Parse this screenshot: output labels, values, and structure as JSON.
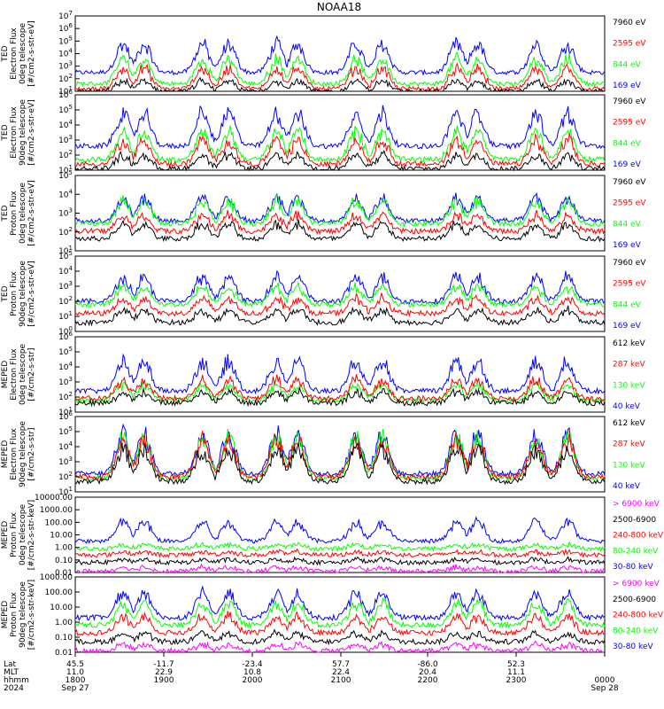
{
  "title": "NOAA18",
  "colors": {
    "blue": "#0000ff",
    "red": "#ff0000",
    "green": "#00ff00",
    "black": "#000000",
    "magenta": "#ff00ff",
    "axis": "#000000"
  },
  "chart_data": [
    {
      "type": "line",
      "id": "ted_e_0",
      "ylabel_lines": [
        "TED",
        "Electron Flux",
        "0deg telescope",
        "[#/cm2-s-str-eV]"
      ],
      "y_scale": "log",
      "yticks": [
        "10^7",
        "10^6",
        "10^5",
        "10^4",
        "10^3",
        "10^2",
        "10^1"
      ],
      "ylim_exp": [
        1,
        7
      ],
      "legend": [
        {
          "label": "7960 eV",
          "color": "black"
        },
        {
          "label": "2595 eV",
          "color": "red"
        },
        {
          "label": "844 eV",
          "color": "green"
        },
        {
          "label": "169 eV",
          "color": "blue"
        }
      ],
      "series": [
        {
          "name": "169 eV",
          "color": "blue",
          "base": 2.5,
          "peak": 5.3
        },
        {
          "name": "844 eV",
          "color": "green",
          "base": 1.6,
          "peak": 4.0
        },
        {
          "name": "2595 eV",
          "color": "red",
          "base": 1.2,
          "peak": 3.2
        },
        {
          "name": "7960 eV",
          "color": "black",
          "base": 1.0,
          "peak": 2.0
        }
      ]
    },
    {
      "type": "line",
      "id": "ted_e_90",
      "ylabel_lines": [
        "TED",
        "Electron Flux",
        "90deg telescope",
        "[#/cm2-s-str-eV]"
      ],
      "y_scale": "log",
      "yticks": [
        "10^6",
        "10^5",
        "10^4",
        "10^3",
        "10^2",
        "10^1"
      ],
      "ylim_exp": [
        1,
        6
      ],
      "legend": [
        {
          "label": "7960 eV",
          "color": "black"
        },
        {
          "label": "2595 eV",
          "color": "red"
        },
        {
          "label": "844 eV",
          "color": "green"
        },
        {
          "label": "169 eV",
          "color": "blue"
        }
      ],
      "series": [
        {
          "name": "169 eV",
          "color": "blue",
          "base": 2.6,
          "peak": 5.3
        },
        {
          "name": "844 eV",
          "color": "green",
          "base": 1.7,
          "peak": 4.0
        },
        {
          "name": "2595 eV",
          "color": "red",
          "base": 1.4,
          "peak": 3.3
        },
        {
          "name": "7960 eV",
          "color": "black",
          "base": 1.1,
          "peak": 2.2
        }
      ]
    },
    {
      "type": "line",
      "id": "ted_p_0",
      "ylabel_lines": [
        "TED",
        "Proton Flux",
        "0deg telescope",
        "[#/cm2-s-str-eV]"
      ],
      "y_scale": "log",
      "yticks": [
        "10^5",
        "10^4",
        "10^3",
        "10^2",
        "10^1"
      ],
      "ylim_exp": [
        0,
        5
      ],
      "legend": [
        {
          "label": "7960 eV",
          "color": "black"
        },
        {
          "label": "2595 eV",
          "color": "red"
        },
        {
          "label": "844 eV",
          "color": "green"
        },
        {
          "label": "169 eV",
          "color": "blue"
        }
      ],
      "series": [
        {
          "name": "169 eV",
          "color": "blue",
          "base": 2.0,
          "peak": 3.8
        },
        {
          "name": "844 eV",
          "color": "green",
          "base": 1.8,
          "peak": 3.6
        },
        {
          "name": "2595 eV",
          "color": "red",
          "base": 1.3,
          "peak": 2.6
        },
        {
          "name": "7960 eV",
          "color": "black",
          "base": 0.8,
          "peak": 2.0
        }
      ]
    },
    {
      "type": "line",
      "id": "ted_p_90",
      "ylabel_lines": [
        "TED",
        "Proton Flux",
        "90deg telescope",
        "[#/cm2-s-str-eV]"
      ],
      "y_scale": "log",
      "yticks": [
        "10^5",
        "10^4",
        "10^3",
        "10^2",
        "10^1",
        "10^0"
      ],
      "ylim_exp": [
        0,
        5
      ],
      "legend": [
        {
          "label": "7960 eV",
          "color": "black"
        },
        {
          "label": "2595 eV",
          "color": "red"
        },
        {
          "label": "844 eV",
          "color": "green"
        },
        {
          "label": "169 eV",
          "color": "blue"
        }
      ],
      "series": [
        {
          "name": "169 eV",
          "color": "blue",
          "base": 2.0,
          "peak": 4.0
        },
        {
          "name": "844 eV",
          "color": "green",
          "base": 1.8,
          "peak": 3.2
        },
        {
          "name": "2595 eV",
          "color": "red",
          "base": 1.2,
          "peak": 2.4
        },
        {
          "name": "7960 eV",
          "color": "black",
          "base": 0.6,
          "peak": 1.6
        }
      ]
    },
    {
      "type": "line",
      "id": "meped_e_0",
      "ylabel_lines": [
        "MEPED",
        "Electron Flux",
        "0deg telescope",
        "[#/cm2-s-str]"
      ],
      "y_scale": "log",
      "yticks": [
        "10^6",
        "10^5",
        "10^4",
        "10^3",
        "10^2",
        "10^1"
      ],
      "ylim_exp": [
        1,
        6
      ],
      "legend": [
        {
          "label": "612 keV",
          "color": "black"
        },
        {
          "label": "287 keV",
          "color": "red"
        },
        {
          "label": "130 keV",
          "color": "green"
        },
        {
          "label": "40 keV",
          "color": "blue"
        }
      ],
      "series": [
        {
          "name": "40 keV",
          "color": "blue",
          "base": 2.4,
          "peak": 4.8
        },
        {
          "name": "130 keV",
          "color": "green",
          "base": 1.8,
          "peak": 3.0
        },
        {
          "name": "287 keV",
          "color": "red",
          "base": 1.9,
          "peak": 3.4
        },
        {
          "name": "612 keV",
          "color": "black",
          "base": 1.6,
          "peak": 2.5
        }
      ]
    },
    {
      "type": "line",
      "id": "meped_e_90",
      "ylabel_lines": [
        "MEPED",
        "Electron Flux",
        "90deg telescope",
        "[#/cm2-s-str]"
      ],
      "y_scale": "log",
      "yticks": [
        "10^6",
        "10^5",
        "10^4",
        "10^3",
        "10^2",
        "10^1"
      ],
      "ylim_exp": [
        1,
        6
      ],
      "legend": [
        {
          "label": "612 keV",
          "color": "black"
        },
        {
          "label": "287 keV",
          "color": "red"
        },
        {
          "label": "130 keV",
          "color": "green"
        },
        {
          "label": "40 keV",
          "color": "blue"
        }
      ],
      "series": [
        {
          "name": "40 keV",
          "color": "blue",
          "base": 2.2,
          "peak": 5.4
        },
        {
          "name": "130 keV",
          "color": "green",
          "base": 1.9,
          "peak": 5.2
        },
        {
          "name": "287 keV",
          "color": "red",
          "base": 2.0,
          "peak": 4.9
        },
        {
          "name": "612 keV",
          "color": "black",
          "base": 1.7,
          "peak": 4.3
        }
      ]
    },
    {
      "type": "line",
      "id": "meped_p_0",
      "ylabel_lines": [
        "MEPED",
        "Proton Flux",
        "0deg telescope",
        "[#/cm2-s-str-keV]"
      ],
      "y_scale": "log",
      "yticks": [
        "10000.00",
        "1000.00",
        "100.00",
        "10.00",
        "1.00",
        "0.10",
        "0.01"
      ],
      "ylim_exp": [
        -2,
        4
      ],
      "legend": [
        {
          "label": "> 6900 keV",
          "color": "magenta"
        },
        {
          "label": "2500-6900",
          "color": "black"
        },
        {
          "label": "240-800 keV",
          "color": "red"
        },
        {
          "label": "80-240 keV",
          "color": "green"
        },
        {
          "label": "30-80 keV",
          "color": "blue"
        }
      ],
      "series": [
        {
          "name": "30-80 keV",
          "color": "blue",
          "base": 0.5,
          "peak": 2.4
        },
        {
          "name": "80-240 keV",
          "color": "green",
          "base": -0.1,
          "peak": 0.3
        },
        {
          "name": "240-800 keV",
          "color": "red",
          "base": -0.6,
          "peak": -0.3
        },
        {
          "name": "2500-6900",
          "color": "black",
          "base": -1.2,
          "peak": -0.9
        },
        {
          "name": "> 6900 keV",
          "color": "magenta",
          "base": -1.9,
          "peak": -1.5
        }
      ]
    },
    {
      "type": "line",
      "id": "meped_p_90",
      "ylabel_lines": [
        "MEPED",
        "Proton Flux",
        "90deg telescope",
        "[#/cm2-s-str-keV]"
      ],
      "y_scale": "log",
      "yticks": [
        "1000.00",
        "100.00",
        "10.00",
        "1.00",
        "0.10",
        "0.01"
      ],
      "ylim_exp": [
        -2,
        3
      ],
      "legend": [
        {
          "label": "> 6900 keV",
          "color": "magenta"
        },
        {
          "label": "2500-6900",
          "color": "black"
        },
        {
          "label": "240-800 keV",
          "color": "red"
        },
        {
          "label": "80-240 keV",
          "color": "green"
        },
        {
          "label": "30-80 keV",
          "color": "blue"
        }
      ],
      "series": [
        {
          "name": "30-80 keV",
          "color": "blue",
          "base": 0.3,
          "peak": 2.3
        },
        {
          "name": "80-240 keV",
          "color": "green",
          "base": -0.2,
          "peak": 1.6
        },
        {
          "name": "240-800 keV",
          "color": "red",
          "base": -0.7,
          "peak": 0.6
        },
        {
          "name": "2500-6900",
          "color": "black",
          "base": -1.3,
          "peak": -0.6
        },
        {
          "name": "> 6900 keV",
          "color": "magenta",
          "base": -1.9,
          "peak": -1.4
        }
      ]
    }
  ],
  "x_axis": {
    "row_labels": [
      "Lat",
      "MLT",
      "hhmm",
      "2024"
    ],
    "columns": [
      {
        "lat": "45.5",
        "mlt": "11.0",
        "hhmm": "1800",
        "date": "Sep 27"
      },
      {
        "lat": "-11.7",
        "mlt": "22.9",
        "hhmm": "1900",
        "date": ""
      },
      {
        "lat": "-23.4",
        "mlt": "10.8",
        "hhmm": "2000",
        "date": ""
      },
      {
        "lat": "57.7",
        "mlt": "22.4",
        "hhmm": "2100",
        "date": ""
      },
      {
        "lat": "-86.0",
        "mlt": "20.4",
        "hhmm": "2200",
        "date": ""
      },
      {
        "lat": "52.3",
        "mlt": "11.1",
        "hhmm": "2300",
        "date": ""
      },
      {
        "lat": "",
        "mlt": "",
        "hhmm": "0000",
        "date": "Sep 28"
      }
    ]
  }
}
